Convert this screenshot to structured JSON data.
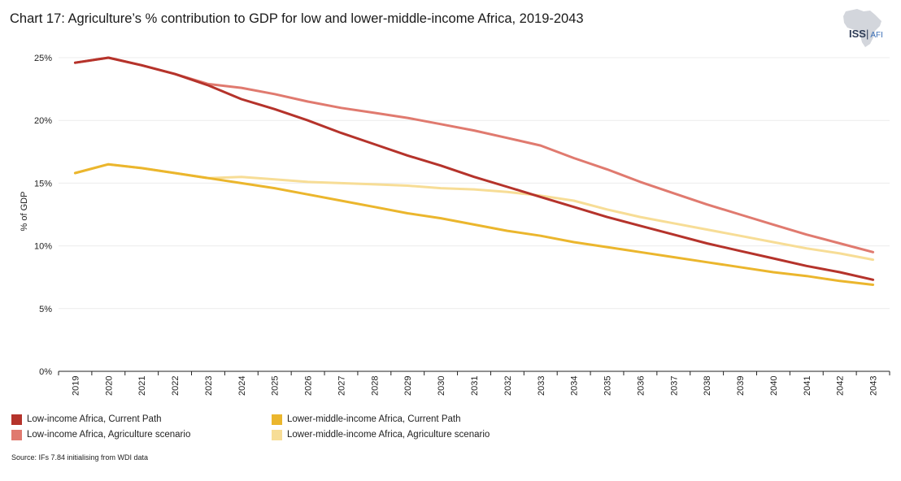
{
  "title": "Chart 17: Agriculture’s % contribution to GDP for low and lower-middle-income Africa, 2019-2043",
  "logo": {
    "main": "ISS",
    "sub": "AFI"
  },
  "source": "Source: IFs 7.84 initialising from WDI data",
  "chart_data": {
    "type": "line",
    "title": "Chart 17: Agriculture’s % contribution to GDP for low and lower-middle-income Africa, 2019-2043",
    "xlabel": "",
    "ylabel": "% of GDP",
    "ylim": [
      0,
      25
    ],
    "yticks": [
      "0%",
      "5%",
      "10%",
      "15%",
      "20%",
      "25%"
    ],
    "grid": true,
    "legend_position": "bottom",
    "x": [
      "2019",
      "2020",
      "2021",
      "2022",
      "2023",
      "2024",
      "2025",
      "2026",
      "2027",
      "2028",
      "2029",
      "2030",
      "2031",
      "2032",
      "2033",
      "2034",
      "2035",
      "2036",
      "2037",
      "2038",
      "2039",
      "2040",
      "2041",
      "2042",
      "2043"
    ],
    "series": [
      {
        "name": "Low-income Africa, Agriculture scenario",
        "color": "#e07a6f",
        "values": [
          24.6,
          25.0,
          24.4,
          23.7,
          22.9,
          22.6,
          22.1,
          21.5,
          21.0,
          20.6,
          20.2,
          19.7,
          19.2,
          18.6,
          18.0,
          17.0,
          16.1,
          15.1,
          14.2,
          13.3,
          12.5,
          11.7,
          10.9,
          10.2,
          9.5
        ]
      },
      {
        "name": "Lower-middle-income Africa, Agriculture scenario",
        "color": "#f7dd96",
        "values": [
          15.8,
          16.5,
          16.2,
          15.8,
          15.4,
          15.5,
          15.3,
          15.1,
          15.0,
          14.9,
          14.8,
          14.6,
          14.5,
          14.3,
          14.0,
          13.6,
          12.9,
          12.3,
          11.8,
          11.3,
          10.8,
          10.3,
          9.8,
          9.4,
          8.9
        ]
      },
      {
        "name": "Lower-middle-income Africa, Current Path",
        "color": "#ebb62d",
        "values": [
          15.8,
          16.5,
          16.2,
          15.8,
          15.4,
          15.0,
          14.6,
          14.1,
          13.6,
          13.1,
          12.6,
          12.2,
          11.7,
          11.2,
          10.8,
          10.3,
          9.9,
          9.5,
          9.1,
          8.7,
          8.3,
          7.9,
          7.6,
          7.2,
          6.9
        ]
      },
      {
        "name": "Low-income Africa, Current Path",
        "color": "#b5332b",
        "values": [
          24.6,
          25.0,
          24.4,
          23.7,
          22.8,
          21.7,
          20.9,
          20.0,
          19.0,
          18.1,
          17.2,
          16.4,
          15.5,
          14.7,
          13.9,
          13.1,
          12.3,
          11.6,
          10.9,
          10.2,
          9.6,
          9.0,
          8.4,
          7.9,
          7.3
        ]
      }
    ]
  },
  "legend": [
    {
      "label": "Low-income Africa, Current Path",
      "color": "#b5332b"
    },
    {
      "label": "Lower-middle-income Africa, Current Path",
      "color": "#ebb62d"
    },
    {
      "label": "Low-income Africa, Agriculture scenario",
      "color": "#e07a6f"
    },
    {
      "label": "Lower-middle-income Africa, Agriculture scenario",
      "color": "#f7dd96"
    }
  ]
}
